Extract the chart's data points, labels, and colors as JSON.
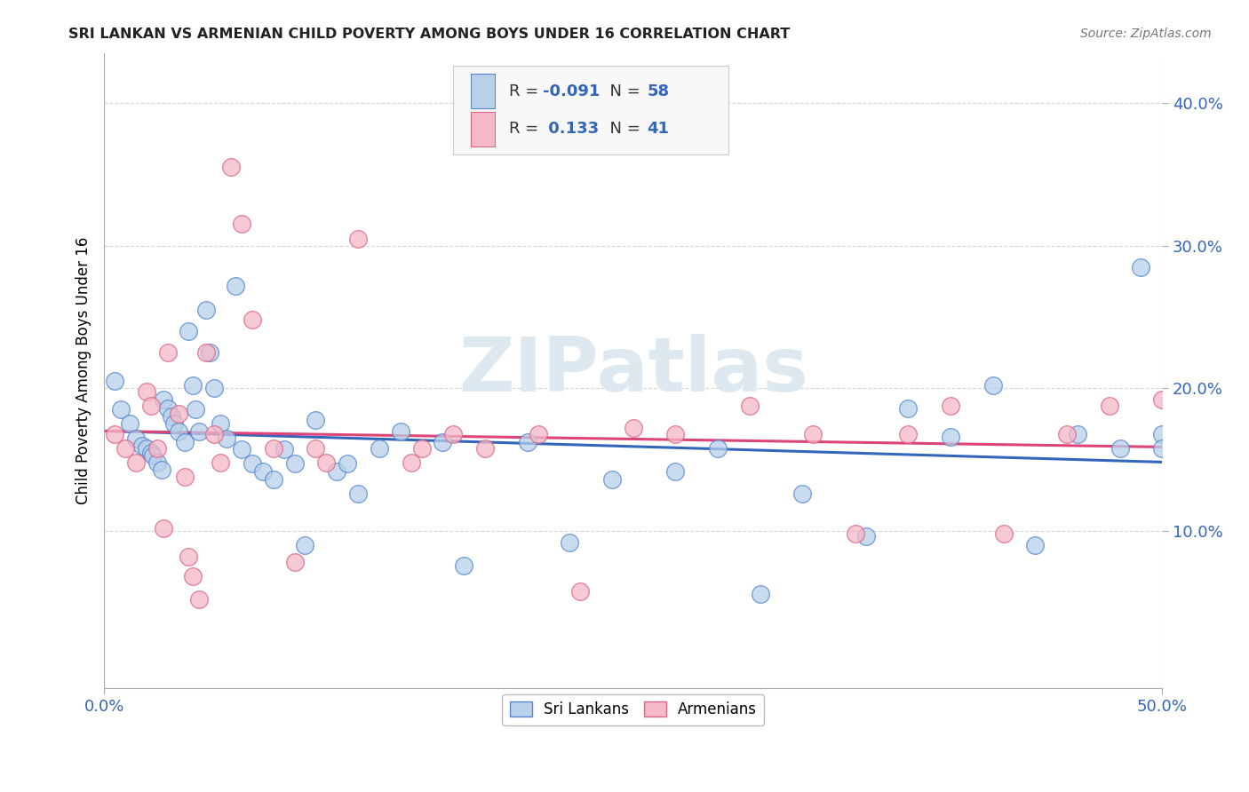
{
  "title": "SRI LANKAN VS ARMENIAN CHILD POVERTY AMONG BOYS UNDER 16 CORRELATION CHART",
  "source": "Source: ZipAtlas.com",
  "ylabel": "Child Poverty Among Boys Under 16",
  "ytick_labels": [
    "10.0%",
    "20.0%",
    "30.0%",
    "40.0%"
  ],
  "ytick_values": [
    0.1,
    0.2,
    0.3,
    0.4
  ],
  "xlim": [
    0.0,
    0.5
  ],
  "ylim": [
    -0.01,
    0.435
  ],
  "legend_labels": [
    "Sri Lankans",
    "Armenians"
  ],
  "sri_lankans_R": "-0.091",
  "sri_lankans_N": "58",
  "armenians_R": "0.133",
  "armenians_N": "41",
  "sri_lankan_fill": "#b8d0ea",
  "armenian_fill": "#f5b8c8",
  "sri_lankan_edge": "#5588cc",
  "armenian_edge": "#dd6688",
  "sri_lankan_line_color": "#3366bb",
  "armenian_line_color": "#dd4477",
  "background_color": "#ffffff",
  "grid_color": "#cccccc",
  "watermark": "ZIPatlas",
  "watermark_color": "#dde8f0",
  "sri_lankans_x": [
    0.005,
    0.008,
    0.012,
    0.015,
    0.018,
    0.02,
    0.022,
    0.023,
    0.025,
    0.027,
    0.028,
    0.03,
    0.032,
    0.033,
    0.035,
    0.038,
    0.04,
    0.042,
    0.043,
    0.045,
    0.048,
    0.05,
    0.052,
    0.055,
    0.058,
    0.062,
    0.065,
    0.07,
    0.075,
    0.08,
    0.085,
    0.09,
    0.095,
    0.1,
    0.11,
    0.115,
    0.12,
    0.13,
    0.14,
    0.16,
    0.17,
    0.2,
    0.22,
    0.24,
    0.27,
    0.29,
    0.31,
    0.33,
    0.36,
    0.38,
    0.4,
    0.42,
    0.44,
    0.46,
    0.48,
    0.49,
    0.5,
    0.5
  ],
  "sri_lankans_y": [
    0.205,
    0.185,
    0.175,
    0.165,
    0.16,
    0.158,
    0.155,
    0.153,
    0.148,
    0.143,
    0.192,
    0.186,
    0.18,
    0.175,
    0.17,
    0.162,
    0.24,
    0.202,
    0.185,
    0.17,
    0.255,
    0.225,
    0.2,
    0.175,
    0.165,
    0.272,
    0.157,
    0.147,
    0.142,
    0.136,
    0.157,
    0.147,
    0.09,
    0.178,
    0.142,
    0.147,
    0.126,
    0.158,
    0.17,
    0.162,
    0.076,
    0.162,
    0.092,
    0.136,
    0.142,
    0.158,
    0.056,
    0.126,
    0.096,
    0.186,
    0.166,
    0.202,
    0.09,
    0.168,
    0.158,
    0.285,
    0.168,
    0.158
  ],
  "armenians_x": [
    0.005,
    0.01,
    0.015,
    0.02,
    0.022,
    0.025,
    0.028,
    0.03,
    0.035,
    0.038,
    0.04,
    0.042,
    0.045,
    0.048,
    0.052,
    0.055,
    0.06,
    0.065,
    0.07,
    0.08,
    0.09,
    0.1,
    0.105,
    0.12,
    0.145,
    0.15,
    0.165,
    0.18,
    0.205,
    0.225,
    0.25,
    0.27,
    0.305,
    0.335,
    0.355,
    0.38,
    0.4,
    0.425,
    0.455,
    0.475,
    0.5
  ],
  "armenians_y": [
    0.168,
    0.158,
    0.148,
    0.198,
    0.188,
    0.158,
    0.102,
    0.225,
    0.182,
    0.138,
    0.082,
    0.068,
    0.052,
    0.225,
    0.168,
    0.148,
    0.355,
    0.315,
    0.248,
    0.158,
    0.078,
    0.158,
    0.148,
    0.305,
    0.148,
    0.158,
    0.168,
    0.158,
    0.168,
    0.058,
    0.172,
    0.168,
    0.188,
    0.168,
    0.098,
    0.168,
    0.188,
    0.098,
    0.168,
    0.188,
    0.192
  ]
}
